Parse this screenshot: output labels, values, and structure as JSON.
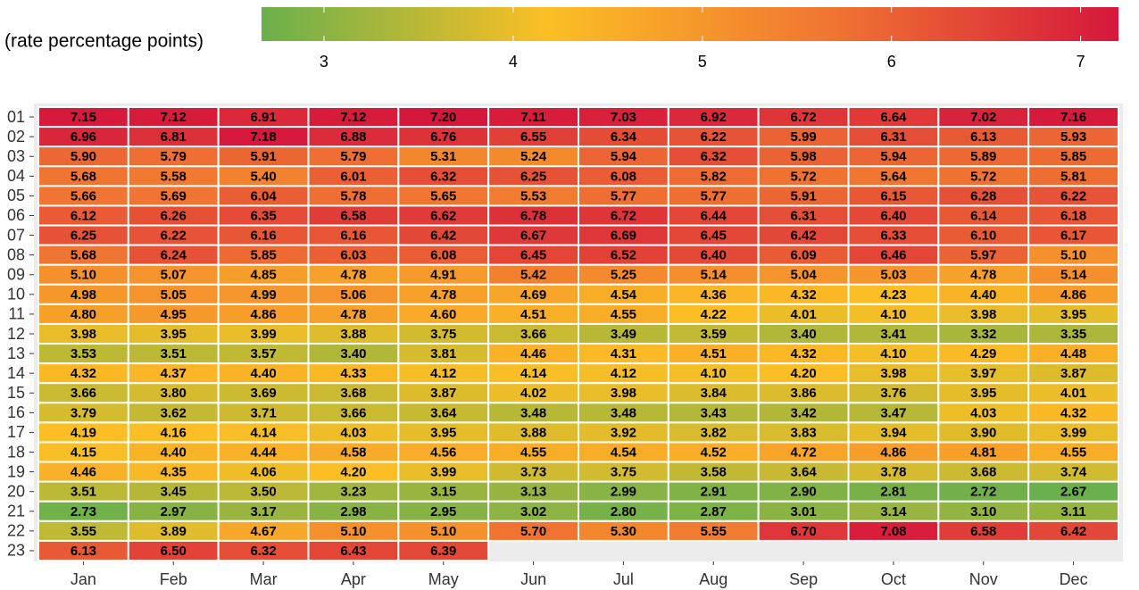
{
  "chart_data": {
    "type": "heatmap",
    "legend_title": "(rate percentage points)",
    "x_categories": [
      "Jan",
      "Feb",
      "Mar",
      "Apr",
      "May",
      "Jun",
      "Jul",
      "Aug",
      "Sep",
      "Oct",
      "Nov",
      "Dec"
    ],
    "y_categories": [
      "01",
      "02",
      "03",
      "04",
      "05",
      "06",
      "07",
      "08",
      "09",
      "10",
      "11",
      "12",
      "13",
      "14",
      "15",
      "16",
      "17",
      "18",
      "19",
      "20",
      "21",
      "22",
      "23"
    ],
    "values": [
      [
        7.15,
        7.12,
        6.91,
        7.12,
        7.2,
        7.11,
        7.03,
        6.92,
        6.72,
        6.64,
        7.02,
        7.16
      ],
      [
        6.96,
        6.81,
        7.18,
        6.88,
        6.76,
        6.55,
        6.34,
        6.22,
        5.99,
        6.31,
        6.13,
        5.93
      ],
      [
        5.9,
        5.79,
        5.91,
        5.79,
        5.31,
        5.24,
        5.94,
        6.32,
        5.98,
        5.94,
        5.89,
        5.85
      ],
      [
        5.68,
        5.58,
        5.4,
        6.01,
        6.32,
        6.25,
        6.08,
        5.82,
        5.72,
        5.64,
        5.72,
        5.81
      ],
      [
        5.66,
        5.69,
        6.04,
        5.78,
        5.65,
        5.53,
        5.77,
        5.77,
        5.91,
        6.15,
        6.28,
        6.22
      ],
      [
        6.12,
        6.26,
        6.35,
        6.58,
        6.62,
        6.78,
        6.72,
        6.44,
        6.31,
        6.4,
        6.14,
        6.18
      ],
      [
        6.25,
        6.22,
        6.16,
        6.16,
        6.42,
        6.67,
        6.69,
        6.45,
        6.42,
        6.33,
        6.1,
        6.17
      ],
      [
        5.68,
        6.24,
        5.85,
        6.03,
        6.08,
        6.45,
        6.52,
        6.4,
        6.09,
        6.46,
        5.97,
        5.1
      ],
      [
        5.1,
        5.07,
        4.85,
        4.78,
        4.91,
        5.42,
        5.25,
        5.14,
        5.04,
        5.03,
        4.78,
        5.14
      ],
      [
        4.98,
        5.05,
        4.99,
        5.06,
        4.78,
        4.69,
        4.54,
        4.36,
        4.32,
        4.23,
        4.4,
        4.86
      ],
      [
        4.8,
        4.95,
        4.86,
        4.78,
        4.6,
        4.51,
        4.55,
        4.22,
        4.01,
        4.1,
        3.98,
        3.95
      ],
      [
        3.98,
        3.95,
        3.99,
        3.88,
        3.75,
        3.66,
        3.49,
        3.59,
        3.4,
        3.41,
        3.32,
        3.35
      ],
      [
        3.53,
        3.51,
        3.57,
        3.4,
        3.81,
        4.46,
        4.31,
        4.51,
        4.32,
        4.1,
        4.29,
        4.48
      ],
      [
        4.32,
        4.37,
        4.4,
        4.33,
        4.12,
        4.14,
        4.12,
        4.1,
        4.2,
        3.98,
        3.97,
        3.87
      ],
      [
        3.66,
        3.8,
        3.69,
        3.68,
        3.87,
        4.02,
        3.98,
        3.84,
        3.86,
        3.76,
        3.95,
        4.01
      ],
      [
        3.79,
        3.62,
        3.71,
        3.66,
        3.64,
        3.48,
        3.48,
        3.43,
        3.42,
        3.47,
        4.03,
        4.32
      ],
      [
        4.19,
        4.16,
        4.14,
        4.03,
        3.95,
        3.88,
        3.92,
        3.82,
        3.83,
        3.94,
        3.9,
        3.99
      ],
      [
        4.15,
        4.4,
        4.44,
        4.58,
        4.56,
        4.55,
        4.54,
        4.52,
        4.72,
        4.86,
        4.81,
        4.55
      ],
      [
        4.46,
        4.35,
        4.06,
        4.2,
        3.99,
        3.73,
        3.75,
        3.58,
        3.64,
        3.78,
        3.68,
        3.74
      ],
      [
        3.51,
        3.45,
        3.5,
        3.23,
        3.15,
        3.13,
        2.99,
        2.91,
        2.9,
        2.81,
        2.72,
        2.67
      ],
      [
        2.73,
        2.97,
        3.17,
        2.98,
        2.95,
        3.02,
        2.8,
        2.87,
        3.01,
        3.14,
        3.1,
        3.11
      ],
      [
        3.55,
        3.89,
        4.67,
        5.1,
        5.1,
        5.7,
        5.3,
        5.55,
        6.7,
        7.08,
        6.58,
        6.42
      ],
      [
        6.13,
        6.5,
        6.32,
        6.43,
        6.39,
        null,
        null,
        null,
        null,
        null,
        null,
        null
      ]
    ],
    "value_labels": [
      [
        "7.15",
        "7.12",
        "6.91",
        "7.12",
        "7.20",
        "7.11",
        "7.03",
        "6.92",
        "6.72",
        "6.64",
        "7.02",
        "7.16"
      ],
      [
        "6.96",
        "6.81",
        "7.18",
        "6.88",
        "6.76",
        "6.55",
        "6.34",
        "6.22",
        "5.99",
        "6.31",
        "6.13",
        "5.93"
      ],
      [
        "5.90",
        "5.79",
        "5.91",
        "5.79",
        "5.31",
        "5.24",
        "5.94",
        "6.32",
        "5.98",
        "5.94",
        "5.89",
        "5.85"
      ],
      [
        "5.68",
        "5.58",
        "5.40",
        "6.01",
        "6.32",
        "6.25",
        "6.08",
        "5.82",
        "5.72",
        "5.64",
        "5.72",
        "5.81"
      ],
      [
        "5.66",
        "5.69",
        "6.04",
        "5.78",
        "5.65",
        "5.53",
        "5.77",
        "5.77",
        "5.91",
        "6.15",
        "6.28",
        "6.22"
      ],
      [
        "6.12",
        "6.26",
        "6.35",
        "6.58",
        "6.62",
        "6.78",
        "6.72",
        "6.44",
        "6.31",
        "6.40",
        "6.14",
        "6.18"
      ],
      [
        "6.25",
        "6.22",
        "6.16",
        "6.16",
        "6.42",
        "6.67",
        "6.69",
        "6.45",
        "6.42",
        "6.33",
        "6.10",
        "6.17"
      ],
      [
        "5.68",
        "6.24",
        "5.85",
        "6.03",
        "6.08",
        "6.45",
        "6.52",
        "6.40",
        "6.09",
        "6.46",
        "5.97",
        "5.10"
      ],
      [
        "5.10",
        "5.07",
        "4.85",
        "4.78",
        "4.91",
        "5.42",
        "5.25",
        "5.14",
        "5.04",
        "5.03",
        "4.78",
        "5.14"
      ],
      [
        "4.98",
        "5.05",
        "4.99",
        "5.06",
        "4.78",
        "4.69",
        "4.54",
        "4.36",
        "4.32",
        "4.23",
        "4.40",
        "4.86"
      ],
      [
        "4.80",
        "4.95",
        "4.86",
        "4.78",
        "4.60",
        "4.51",
        "4.55",
        "4.22",
        "4.01",
        "4.10",
        "3.98",
        "3.95"
      ],
      [
        "3.98",
        "3.95",
        "3.99",
        "3.88",
        "3.75",
        "3.66",
        "3.49",
        "3.59",
        "3.40",
        "3.41",
        "3.32",
        "3.35"
      ],
      [
        "3.53",
        "3.51",
        "3.57",
        "3.40",
        "3.81",
        "4.46",
        "4.31",
        "4.51",
        "4.32",
        "4.10",
        "4.29",
        "4.48"
      ],
      [
        "4.32",
        "4.37",
        "4.40",
        "4.33",
        "4.12",
        "4.14",
        "4.12",
        "4.10",
        "4.20",
        "3.98",
        "3.97",
        "3.87"
      ],
      [
        "3.66",
        "3.80",
        "3.69",
        "3.68",
        "3.87",
        "4.02",
        "3.98",
        "3.84",
        "3.86",
        "3.76",
        "3.95",
        "4.01"
      ],
      [
        "3.79",
        "3.62",
        "3.71",
        "3.66",
        "3.64",
        "3.48",
        "3.48",
        "3.43",
        "3.42",
        "3.47",
        "4.03",
        "4.32"
      ],
      [
        "4.19",
        "4.16",
        "4.14",
        "4.03",
        "3.95",
        "3.88",
        "3.92",
        "3.82",
        "3.83",
        "3.94",
        "3.90",
        "3.99"
      ],
      [
        "4.15",
        "4.40",
        "4.44",
        "4.58",
        "4.56",
        "4.55",
        "4.54",
        "4.52",
        "4.72",
        "4.86",
        "4.81",
        "4.55"
      ],
      [
        "4.46",
        "4.35",
        "4.06",
        "4.20",
        "3.99",
        "3.73",
        "3.75",
        "3.58",
        "3.64",
        "3.78",
        "3.68",
        "3.74"
      ],
      [
        "3.51",
        "3.45",
        "3.50",
        "3.23",
        "3.15",
        "3.13",
        "2.99",
        "2.91",
        "2.90",
        "2.81",
        "2.72",
        "2.67"
      ],
      [
        "2.73",
        "2.97",
        "3.17",
        "2.98",
        "2.95",
        "3.02",
        "2.80",
        "2.87",
        "3.01",
        "3.14",
        "3.10",
        "3.11"
      ],
      [
        "3.55",
        "3.89",
        "4.67",
        "5.10",
        "5.10",
        "5.70",
        "5.30",
        "5.55",
        "6.70",
        "7.08",
        "6.58",
        "6.42"
      ],
      [
        "6.13",
        "6.50",
        "6.32",
        "6.43",
        "6.39",
        null,
        null,
        null,
        null,
        null,
        null,
        null
      ]
    ],
    "clim": [
      2.67,
      7.2
    ],
    "cticks": [
      3,
      4,
      5,
      6,
      7
    ],
    "colors": [
      "#6ab04c",
      "#fbbf24",
      "#f07432",
      "#d6173c"
    ]
  }
}
